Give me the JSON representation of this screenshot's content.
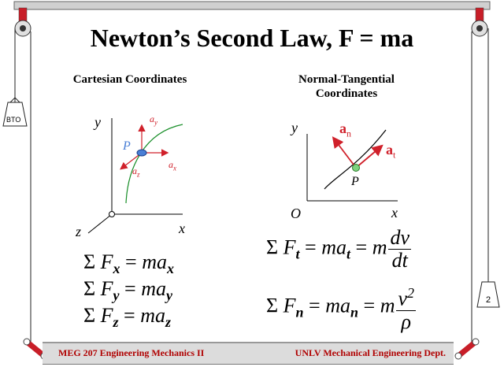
{
  "slide": {
    "title": "Newton’s Second Law, F = ma",
    "page_number": "2",
    "weight_label": "BTO",
    "left": {
      "heading": "Cartesian Coordinates",
      "axis_x": "x",
      "axis_y": "y",
      "axis_z": "z",
      "point": "P",
      "a_x": "x",
      "a_y": "y",
      "a_z": "z",
      "a_letter": "a",
      "equations": [
        {
          "force": "F",
          "sub": "x",
          "rhs": "ma",
          "rhs_sub": "x"
        },
        {
          "force": "F",
          "sub": "y",
          "rhs": "ma",
          "rhs_sub": "y"
        },
        {
          "force": "F",
          "sub": "z",
          "rhs": "ma",
          "rhs_sub": "z"
        }
      ]
    },
    "right": {
      "heading_line1": "Normal-Tangential",
      "heading_line2": "Coordinates",
      "axis_x": "x",
      "axis_y": "y",
      "origin": "O",
      "point": "P",
      "a_n": "a",
      "a_n_sub": "n",
      "a_t": "a",
      "a_t_sub": "t",
      "eq_t": {
        "force": "F",
        "sub": "t",
        "rhs": "ma",
        "rhs_sub": "t",
        "m": "m",
        "num": "dv",
        "den": "dt"
      },
      "eq_n": {
        "force": "F",
        "sub": "n",
        "rhs": "ma",
        "rhs_sub": "n",
        "m": "m",
        "num": "v",
        "num_sup": "2",
        "den": "ρ"
      }
    },
    "sigma": "Σ",
    "equals": "=",
    "footer_left": "MEG 207 Engineering Mechanics II",
    "footer_right": "UNLV Mechanical Engineering Dept.",
    "colors": {
      "accent": "#d0202a",
      "point_left": "#4a7fd6",
      "point_right": "#7ed27e",
      "curve": "#1a8f2a"
    }
  }
}
